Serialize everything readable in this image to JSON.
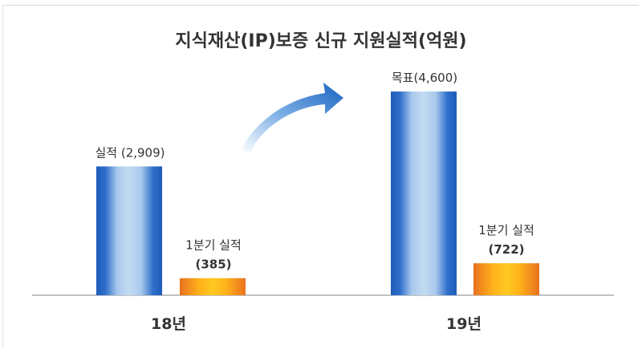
{
  "chart_data": {
    "type": "bar",
    "title": "지식재산(IP)보증 신규 지원실적(억원)",
    "categories": [
      "18년",
      "19년"
    ],
    "ylim": [
      0,
      5000
    ],
    "grid": false,
    "bars": [
      {
        "category": "18년",
        "kind": "blue",
        "value": 2909,
        "label_lines": [
          "실적 (2,909)"
        ]
      },
      {
        "category": "18년",
        "kind": "orange",
        "value": 385,
        "label_lines": [
          "1분기 실적",
          "(385)"
        ]
      },
      {
        "category": "19년",
        "kind": "blue",
        "value": 4600,
        "label_lines": [
          "목표(4,600)"
        ]
      },
      {
        "category": "19년",
        "kind": "orange",
        "value": 722,
        "label_lines": [
          "1분기 실적",
          "(722)"
        ]
      }
    ],
    "annotations": [
      {
        "type": "arrow",
        "from_category": "18년",
        "to_category": "19년"
      }
    ],
    "colors": {
      "blue_dark": "#1f5bb8",
      "blue_light": "#b9d4ee",
      "orange_dark": "#e8711f",
      "orange_light": "#ffc21a",
      "text": "#333333",
      "axis": "#9e9e9e"
    }
  }
}
